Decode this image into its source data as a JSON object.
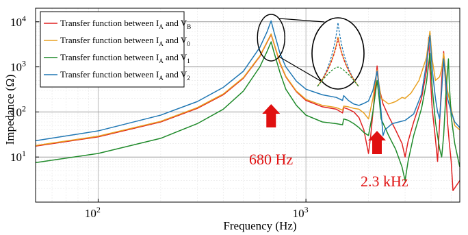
{
  "chart_data": {
    "type": "line",
    "xlabel": "Frequency (Hz)",
    "ylabel": "Impedance (Ω)",
    "x_scale": "log",
    "y_scale": "log",
    "xlim": [
      50,
      5500
    ],
    "ylim": [
      1,
      20000
    ],
    "x_ticks": [
      {
        "value": 100,
        "base": "10",
        "exp": "2"
      },
      {
        "value": 1000,
        "base": "10",
        "exp": "3"
      }
    ],
    "y_ticks": [
      {
        "value": 10,
        "base": "10",
        "exp": "1"
      },
      {
        "value": 100,
        "base": "10",
        "exp": "2"
      },
      {
        "value": 1000,
        "base": "10",
        "exp": "3"
      },
      {
        "value": 10000,
        "base": "10",
        "exp": "4"
      }
    ],
    "grid": true,
    "legend_position": "top-left",
    "series": [
      {
        "name": "Transfer function between I_A and V_B",
        "legend": {
          "prefix": "Transfer function between I",
          "sub1": "A",
          "mid": " and V",
          "sub2": "B"
        },
        "color": "#e02020",
        "points": [
          [
            50,
            17.5
          ],
          [
            100,
            28
          ],
          [
            200,
            60
          ],
          [
            300,
            120
          ],
          [
            400,
            240
          ],
          [
            500,
            560
          ],
          [
            600,
            1700
          ],
          [
            650,
            3500
          ],
          [
            680,
            5200
          ],
          [
            700,
            3400
          ],
          [
            750,
            1200
          ],
          [
            800,
            600
          ],
          [
            900,
            280
          ],
          [
            1000,
            180
          ],
          [
            1200,
            130
          ],
          [
            1400,
            115
          ],
          [
            1500,
            95
          ],
          [
            1520,
            125
          ],
          [
            1600,
            115
          ],
          [
            1700,
            100
          ],
          [
            1800,
            75
          ],
          [
            1900,
            40
          ],
          [
            2000,
            12
          ],
          [
            2050,
            30
          ],
          [
            2150,
            300
          ],
          [
            2200,
            1050
          ],
          [
            2250,
            350
          ],
          [
            2350,
            150
          ],
          [
            2500,
            80
          ],
          [
            2700,
            40
          ],
          [
            2900,
            20
          ],
          [
            3000,
            10
          ],
          [
            3100,
            22
          ],
          [
            3300,
            60
          ],
          [
            3600,
            200
          ],
          [
            3800,
            800
          ],
          [
            3900,
            4500
          ],
          [
            3950,
            900
          ],
          [
            4050,
            120
          ],
          [
            4200,
            25
          ],
          [
            4300,
            8
          ],
          [
            4400,
            60
          ],
          [
            4500,
            500
          ],
          [
            4600,
            2200
          ],
          [
            4700,
            400
          ],
          [
            4800,
            60
          ],
          [
            4900,
            20
          ],
          [
            5000,
            8
          ],
          [
            5100,
            1.8
          ],
          [
            5500,
            3
          ]
        ]
      },
      {
        "name": "Transfer function between I_A and V_0",
        "legend": {
          "prefix": "Transfer function between I",
          "sub1": "A",
          "mid": " and V",
          "sub2": "0"
        },
        "color": "#e8a020",
        "points": [
          [
            50,
            18
          ],
          [
            100,
            29
          ],
          [
            200,
            62
          ],
          [
            300,
            125
          ],
          [
            400,
            250
          ],
          [
            500,
            580
          ],
          [
            600,
            1750
          ],
          [
            650,
            3600
          ],
          [
            680,
            5400
          ],
          [
            700,
            3500
          ],
          [
            750,
            1250
          ],
          [
            800,
            620
          ],
          [
            900,
            290
          ],
          [
            1000,
            190
          ],
          [
            1200,
            140
          ],
          [
            1400,
            125
          ],
          [
            1500,
            110
          ],
          [
            1520,
            135
          ],
          [
            1600,
            130
          ],
          [
            1700,
            120
          ],
          [
            1800,
            115
          ],
          [
            1900,
            95
          ],
          [
            2000,
            70
          ],
          [
            2100,
            200
          ],
          [
            2200,
            850
          ],
          [
            2250,
            400
          ],
          [
            2300,
            200
          ],
          [
            2500,
            150
          ],
          [
            2700,
            170
          ],
          [
            2900,
            210
          ],
          [
            3000,
            200
          ],
          [
            3200,
            260
          ],
          [
            3500,
            500
          ],
          [
            3800,
            1600
          ],
          [
            3950,
            6200
          ],
          [
            4050,
            1500
          ],
          [
            4200,
            500
          ],
          [
            4400,
            600
          ],
          [
            4500,
            900
          ],
          [
            4600,
            2000
          ],
          [
            4700,
            800
          ],
          [
            4800,
            300
          ],
          [
            5000,
            120
          ],
          [
            5200,
            50
          ],
          [
            5500,
            40
          ]
        ]
      },
      {
        "name": "Transfer function between I_A and V_1",
        "legend": {
          "prefix": "Transfer function between I",
          "sub1": "A",
          "mid": " and V",
          "sub2": "1"
        },
        "color": "#1f8a2a",
        "points": [
          [
            50,
            7.5
          ],
          [
            100,
            12
          ],
          [
            200,
            26
          ],
          [
            300,
            55
          ],
          [
            400,
            115
          ],
          [
            500,
            290
          ],
          [
            600,
            1000
          ],
          [
            650,
            2200
          ],
          [
            680,
            3600
          ],
          [
            700,
            2200
          ],
          [
            750,
            750
          ],
          [
            800,
            320
          ],
          [
            900,
            140
          ],
          [
            1000,
            85
          ],
          [
            1200,
            60
          ],
          [
            1400,
            55
          ],
          [
            1500,
            52
          ],
          [
            1520,
            70
          ],
          [
            1600,
            65
          ],
          [
            1700,
            55
          ],
          [
            1800,
            45
          ],
          [
            1900,
            35
          ],
          [
            2000,
            30
          ],
          [
            2100,
            100
          ],
          [
            2200,
            500
          ],
          [
            2250,
            200
          ],
          [
            2300,
            70
          ],
          [
            2500,
            30
          ],
          [
            2700,
            15
          ],
          [
            2900,
            6
          ],
          [
            3000,
            3
          ],
          [
            3100,
            8
          ],
          [
            3300,
            30
          ],
          [
            3600,
            120
          ],
          [
            3800,
            450
          ],
          [
            3950,
            2000
          ],
          [
            4050,
            350
          ],
          [
            4200,
            60
          ],
          [
            4400,
            15
          ],
          [
            4500,
            10
          ],
          [
            4600,
            30
          ],
          [
            4700,
            200
          ],
          [
            4800,
            800
          ],
          [
            4850,
            1500
          ],
          [
            4900,
            400
          ],
          [
            5000,
            80
          ],
          [
            5200,
            20
          ],
          [
            5500,
            6
          ]
        ]
      },
      {
        "name": "Transfer function between I_A and V_2",
        "legend": {
          "prefix": "Transfer function between I",
          "sub1": "A",
          "mid": " and V",
          "sub2": "2"
        },
        "color": "#1f77b4",
        "points": [
          [
            50,
            23
          ],
          [
            100,
            38
          ],
          [
            200,
            85
          ],
          [
            300,
            170
          ],
          [
            400,
            350
          ],
          [
            500,
            800
          ],
          [
            600,
            2700
          ],
          [
            650,
            6000
          ],
          [
            680,
            10500
          ],
          [
            700,
            6200
          ],
          [
            750,
            2000
          ],
          [
            800,
            1000
          ],
          [
            900,
            480
          ],
          [
            1000,
            320
          ],
          [
            1200,
            240
          ],
          [
            1400,
            210
          ],
          [
            1500,
            180
          ],
          [
            1520,
            230
          ],
          [
            1600,
            180
          ],
          [
            1700,
            150
          ],
          [
            1800,
            140
          ],
          [
            1900,
            155
          ],
          [
            2000,
            175
          ],
          [
            2100,
            300
          ],
          [
            2200,
            800
          ],
          [
            2250,
            350
          ],
          [
            2300,
            100
          ],
          [
            2350,
            30
          ],
          [
            2400,
            40
          ],
          [
            2600,
            55
          ],
          [
            2800,
            60
          ],
          [
            3000,
            65
          ],
          [
            3300,
            90
          ],
          [
            3600,
            250
          ],
          [
            3800,
            1200
          ],
          [
            3950,
            5000
          ],
          [
            4050,
            900
          ],
          [
            4200,
            200
          ],
          [
            4300,
            100
          ],
          [
            4400,
            70
          ],
          [
            4500,
            300
          ],
          [
            4600,
            1500
          ],
          [
            4700,
            500
          ],
          [
            4800,
            200
          ],
          [
            5000,
            100
          ],
          [
            5200,
            60
          ],
          [
            5500,
            45
          ]
        ]
      }
    ],
    "annotations": [
      {
        "text": "680 Hz",
        "color": "#e01010",
        "x": 680
      },
      {
        "text": "2.3 kHz",
        "color": "#e01010",
        "x": 2300
      }
    ]
  }
}
